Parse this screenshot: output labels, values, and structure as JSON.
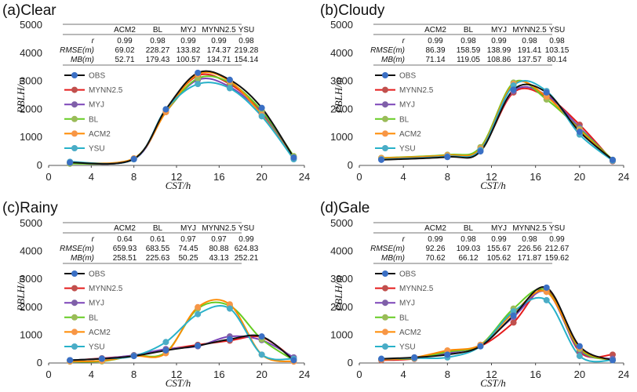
{
  "figure": {
    "series_colors": {
      "OBS": "#111111",
      "MYNN2.5": "#e51b1b",
      "MYJ": "#7b45b8",
      "BL": "#66cc22",
      "ACM2": "#ff8a00",
      "YSU": "#27b1c9"
    },
    "marker_colors": {
      "OBS": "#3a6fc4",
      "MYNN2.5": "#c0504d",
      "MYJ": "#7f60a8",
      "BL": "#9bbb59",
      "ACM2": "#f79646",
      "YSU": "#4bacc6"
    }
  },
  "chart_data": [
    {
      "type": "line",
      "title": "(a)Clear",
      "xlabel": "CST/h",
      "ylabel": "PBLH/m",
      "xlim": [
        0,
        24
      ],
      "ylim": [
        0,
        5000
      ],
      "xticks": [
        "0",
        "4",
        "8",
        "12",
        "16",
        "20",
        "24"
      ],
      "yticks": [
        "0",
        "1000",
        "2000",
        "3000",
        "4000",
        "5000"
      ],
      "legend": [
        "OBS",
        "MYNN2.5",
        "MYJ",
        "BL",
        "ACM2",
        "YSU"
      ],
      "stats_table": {
        "columns": [
          "ACM2",
          "BL",
          "MYJ",
          "MYNN2.5",
          "YSU"
        ],
        "rows": [
          {
            "label": "r",
            "values": [
              "0.99",
              "0.98",
              "0.99",
              "0.99",
              "0.98"
            ]
          },
          {
            "label": "RMSE(m)",
            "values": [
              "69.02",
              "228.27",
              "133.82",
              "174.37",
              "219.28"
            ]
          },
          {
            "label": "MB(m)",
            "values": [
              "52.71",
              "179.43",
              "100.57",
              "134.71",
              "154.14"
            ]
          }
        ]
      },
      "x": [
        2,
        8,
        11,
        14,
        17,
        20,
        23
      ],
      "series": [
        {
          "name": "OBS",
          "values": [
            100,
            230,
            2000,
            3300,
            3050,
            2050,
            280
          ]
        },
        {
          "name": "MYNN2.5",
          "values": [
            90,
            240,
            1950,
            3200,
            2900,
            1900,
            260
          ]
        },
        {
          "name": "MYJ",
          "values": [
            100,
            220,
            1900,
            3050,
            2800,
            1850,
            250
          ]
        },
        {
          "name": "BL",
          "values": [
            60,
            250,
            1900,
            3100,
            2950,
            1950,
            330
          ]
        },
        {
          "name": "ACM2",
          "values": [
            110,
            250,
            1900,
            3250,
            3000,
            1800,
            250
          ]
        },
        {
          "name": "YSU",
          "values": [
            130,
            220,
            2000,
            2900,
            2750,
            1750,
            220
          ]
        }
      ]
    },
    {
      "type": "line",
      "title": "(b)Cloudy",
      "xlabel": "CST/h",
      "ylabel": "PBLH/m",
      "xlim": [
        0,
        24
      ],
      "ylim": [
        0,
        5000
      ],
      "xticks": [
        "0",
        "4",
        "8",
        "12",
        "16",
        "20",
        "24"
      ],
      "yticks": [
        "0",
        "1000",
        "2000",
        "3000",
        "4000",
        "5000"
      ],
      "legend": [
        "OBS",
        "MYNN2.5",
        "MYJ",
        "BL",
        "ACM2",
        "YSU"
      ],
      "stats_table": {
        "columns": [
          "ACM2",
          "BL",
          "MYJ",
          "MYNN2.5",
          "YSU"
        ],
        "rows": [
          {
            "label": "r",
            "values": [
              "0.99",
              "0.98",
              "0.99",
              "0.98",
              "0.98"
            ]
          },
          {
            "label": "RMSE(m)",
            "values": [
              "86.39",
              "158.59",
              "138.99",
              "191.41",
              "103.15"
            ]
          },
          {
            "label": "MB(m)",
            "values": [
              "71.14",
              "119.05",
              "108.86",
              "137.57",
              "80.14"
            ]
          }
        ]
      },
      "x": [
        2,
        8,
        11,
        14,
        17,
        20,
        23
      ],
      "series": [
        {
          "name": "OBS",
          "values": [
            200,
            300,
            500,
            2700,
            2600,
            1200,
            200
          ]
        },
        {
          "name": "MYNN2.5",
          "values": [
            250,
            350,
            550,
            2600,
            2450,
            1450,
            150
          ]
        },
        {
          "name": "MYJ",
          "values": [
            230,
            330,
            600,
            2650,
            2500,
            1350,
            180
          ]
        },
        {
          "name": "BL",
          "values": [
            270,
            380,
            650,
            2950,
            2350,
            1300,
            200
          ]
        },
        {
          "name": "ACM2",
          "values": [
            260,
            360,
            600,
            2900,
            2450,
            1250,
            190
          ]
        },
        {
          "name": "YSU",
          "values": [
            220,
            320,
            550,
            2850,
            2650,
            1100,
            170
          ]
        }
      ]
    },
    {
      "type": "line",
      "title": "(c)Rainy",
      "xlabel": "CST/h",
      "ylabel": "PBLH/m",
      "xlim": [
        0,
        24
      ],
      "ylim": [
        0,
        5000
      ],
      "xticks": [
        "0",
        "4",
        "8",
        "12",
        "16",
        "20",
        "24"
      ],
      "yticks": [
        "0",
        "1000",
        "2000",
        "3000",
        "4000",
        "5000"
      ],
      "legend": [
        "OBS",
        "MYNN2.5",
        "MYJ",
        "BL",
        "ACM2",
        "YSU"
      ],
      "stats_table": {
        "columns": [
          "ACM2",
          "BL",
          "MYJ",
          "MYNN2.5",
          "YSU"
        ],
        "rows": [
          {
            "label": "r",
            "values": [
              "0.64",
              "0.61",
              "0.97",
              "0.97",
              "0.99"
            ]
          },
          {
            "label": "RMSE(m)",
            "values": [
              "659.93",
              "683.55",
              "74.45",
              "80.88",
              "624.83"
            ]
          },
          {
            "label": "MB(m)",
            "values": [
              "258.51",
              "225.63",
              "50.25",
              "43.13",
              "252.21"
            ]
          }
        ]
      },
      "x": [
        2,
        5,
        8,
        11,
        14,
        17,
        20,
        23
      ],
      "series": [
        {
          "name": "OBS",
          "values": [
            100,
            150,
            250,
            450,
            620,
            850,
            950,
            100
          ]
        },
        {
          "name": "MYNN2.5",
          "values": [
            90,
            170,
            270,
            480,
            650,
            800,
            920,
            150
          ]
        },
        {
          "name": "MYJ",
          "values": [
            100,
            160,
            280,
            500,
            600,
            950,
            820,
            200
          ]
        },
        {
          "name": "BL",
          "values": [
            50,
            60,
            260,
            380,
            1950,
            2050,
            850,
            100
          ]
        },
        {
          "name": "ACM2",
          "values": [
            60,
            80,
            250,
            350,
            2000,
            2100,
            300,
            50
          ]
        },
        {
          "name": "YSU",
          "values": [
            100,
            150,
            250,
            750,
            1750,
            1950,
            300,
            150
          ]
        }
      ]
    },
    {
      "type": "line",
      "title": "(d)Gale",
      "xlabel": "CST/h",
      "ylabel": "PBLH/m",
      "xlim": [
        0,
        24
      ],
      "ylim": [
        0,
        5000
      ],
      "xticks": [
        "0",
        "4",
        "8",
        "12",
        "16",
        "20",
        "24"
      ],
      "yticks": [
        "0",
        "1000",
        "2000",
        "3000",
        "4000",
        "5000"
      ],
      "legend": [
        "OBS",
        "MYNN2.5",
        "MYJ",
        "BL",
        "ACM2",
        "YSU"
      ],
      "stats_table": {
        "columns": [
          "ACM2",
          "BL",
          "MYJ",
          "MYNN2.5",
          "YSU"
        ],
        "rows": [
          {
            "label": "r",
            "values": [
              "0.99",
              "0.98",
              "0.99",
              "0.98",
              "0.99"
            ]
          },
          {
            "label": "RMSE(m)",
            "values": [
              "92.26",
              "109.03",
              "155.67",
              "226.56",
              "212.67"
            ]
          },
          {
            "label": "MB(m)",
            "values": [
              "70.62",
              "66.12",
              "105.62",
              "171.87",
              "159.62"
            ]
          }
        ]
      },
      "x": [
        2,
        5,
        8,
        11,
        14,
        17,
        20,
        23
      ],
      "series": [
        {
          "name": "OBS",
          "values": [
            150,
            200,
            300,
            600,
            1700,
            2700,
            600,
            100
          ]
        },
        {
          "name": "MYNN2.5",
          "values": [
            100,
            150,
            400,
            600,
            1450,
            2650,
            400,
            300
          ]
        },
        {
          "name": "MYJ",
          "values": [
            120,
            180,
            350,
            650,
            1650,
            2550,
            450,
            150
          ]
        },
        {
          "name": "BL",
          "values": [
            130,
            170,
            400,
            650,
            1950,
            2600,
            500,
            100
          ]
        },
        {
          "name": "ACM2",
          "values": [
            120,
            200,
            450,
            650,
            1800,
            2550,
            550,
            100
          ]
        },
        {
          "name": "YSU",
          "values": [
            150,
            180,
            200,
            600,
            1850,
            2250,
            250,
            100
          ]
        }
      ]
    }
  ]
}
